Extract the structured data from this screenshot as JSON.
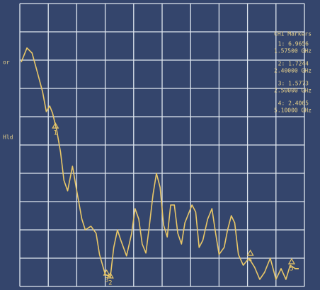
{
  "chart_data": {
    "type": "line",
    "side_labels": [
      "or",
      "Hld"
    ],
    "readout_title": "CH1 Markers",
    "readouts": [
      {
        "value": "1: 6.9656",
        "freq": "1.57500 GHz"
      },
      {
        "value": "2: 1.7244",
        "freq": "2.40000 GHz"
      },
      {
        "value": "3: 1.5773",
        "freq": "2.50000 GHz"
      },
      {
        "value": "4: 2.4065",
        "freq": "5.10000 GHz"
      }
    ],
    "xlim": [
      0,
      10
    ],
    "ylim": [
      0,
      10
    ],
    "xticks": [
      0,
      1,
      2,
      3,
      4,
      5,
      6,
      7,
      8,
      9,
      10
    ],
    "yticks": [
      0,
      1,
      2,
      3,
      4,
      5,
      6,
      7,
      8,
      9,
      10
    ],
    "grid": true,
    "series": [
      {
        "color": "#e9c767",
        "x": [
          0.05,
          0.25,
          0.43,
          0.6,
          0.8,
          0.93,
          1.05,
          1.15,
          1.3,
          1.43,
          1.55,
          1.68,
          1.85,
          2.0,
          2.18,
          2.3,
          2.5,
          2.68,
          2.8,
          3.0,
          3.18,
          3.3,
          3.43,
          3.55,
          3.75,
          3.93,
          4.05,
          4.18,
          4.3,
          4.43,
          4.55,
          4.68,
          4.8,
          4.93,
          5.05,
          5.18,
          5.3,
          5.43,
          5.55,
          5.68,
          5.8,
          6.05,
          6.18,
          6.3,
          6.43,
          6.6,
          6.75,
          6.88,
          7.0,
          7.18,
          7.3,
          7.43,
          7.55,
          7.68,
          7.85,
          8.05,
          8.25,
          8.43,
          8.6,
          8.8,
          9.0,
          9.18,
          9.35,
          9.5,
          9.68,
          9.8
        ],
        "values": [
          7.93,
          8.43,
          8.25,
          7.63,
          6.88,
          6.18,
          6.38,
          6.13,
          5.5,
          4.75,
          3.75,
          3.38,
          4.25,
          3.38,
          2.38,
          2.0,
          2.13,
          1.88,
          1.13,
          0.43,
          0.33,
          1.38,
          2.0,
          1.63,
          1.08,
          1.88,
          2.75,
          2.38,
          1.5,
          1.18,
          2.13,
          3.25,
          4.0,
          3.5,
          2.18,
          1.75,
          2.88,
          2.88,
          1.88,
          1.5,
          2.25,
          2.88,
          2.63,
          1.38,
          1.63,
          2.38,
          2.75,
          1.88,
          1.13,
          1.38,
          2.0,
          2.5,
          2.25,
          1.13,
          0.75,
          1.0,
          0.68,
          0.25,
          0.5,
          1.0,
          0.25,
          0.63,
          0.25,
          0.75,
          0.63,
          0.63
        ]
      }
    ],
    "markers": [
      {
        "label": "1",
        "x": 1.25,
        "y": 5.6
      },
      {
        "label": "2",
        "x": 3.18,
        "y": 0.3
      },
      {
        "label": "3",
        "x": 3.05,
        "y": 0.4
      },
      {
        "label": "4",
        "x": 8.1,
        "y": 1.1
      },
      {
        "label": "5",
        "x": 9.55,
        "y": 0.8
      }
    ]
  }
}
